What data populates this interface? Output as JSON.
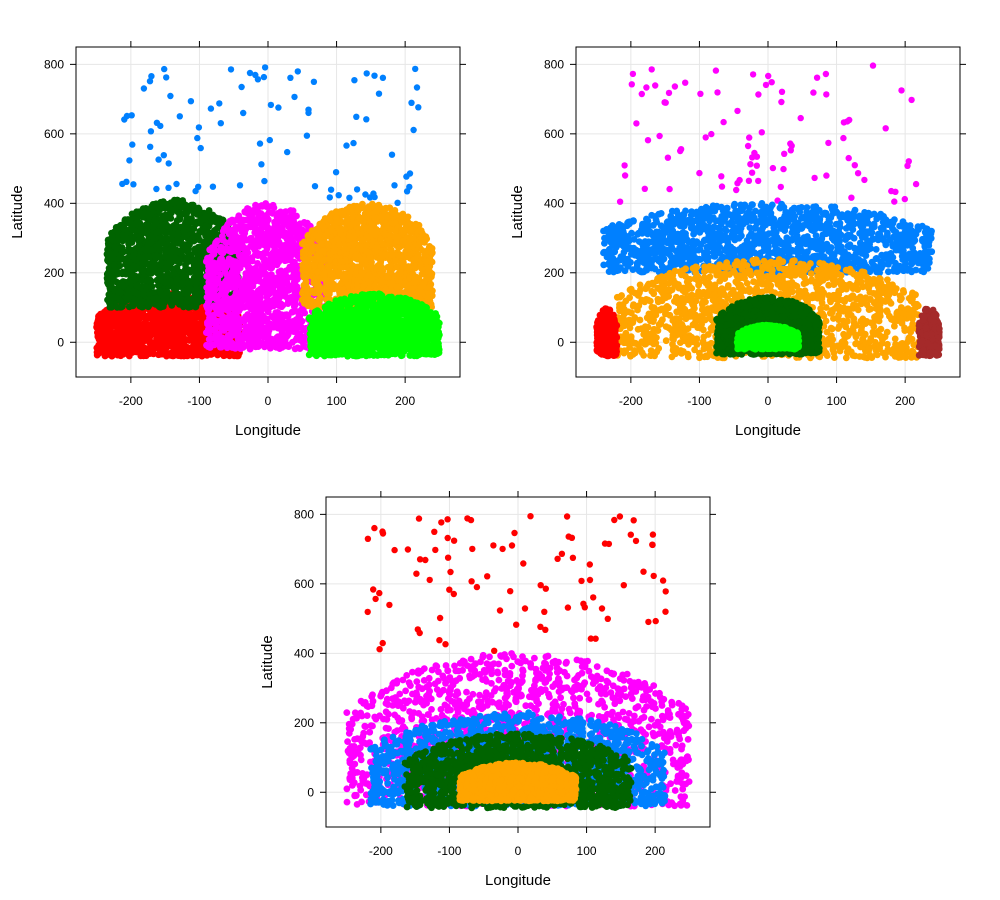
{
  "colors": {
    "red": "#ff0000",
    "green": "#00ff00",
    "darkgreen": "#006400",
    "blue": "#0080ff",
    "magenta": "#ff00ff",
    "orange": "#ffa500",
    "brown": "#a52a2a",
    "grid": "#e6e6e6",
    "frame": "#000000"
  },
  "chart_data": [
    {
      "type": "scatter",
      "title": "",
      "xlabel": "Longitude",
      "ylabel": "Latitude",
      "xlim": [
        -280,
        280
      ],
      "ylim": [
        -100,
        850
      ],
      "x_ticks": [
        -200,
        -100,
        0,
        100,
        200
      ],
      "y_ticks": [
        0,
        200,
        400,
        600,
        800
      ],
      "grid": true,
      "clusters": [
        {
          "color": "red",
          "x_range": [
            -250,
            -40
          ],
          "y_range": [
            -40,
            140
          ],
          "approx_points": 3000
        },
        {
          "color": "darkgreen",
          "x_range": [
            -235,
            -40
          ],
          "y_range": [
            100,
            410
          ],
          "approx_points": 2500
        },
        {
          "color": "magenta",
          "x_range": [
            -90,
            90
          ],
          "y_range": [
            -20,
            400
          ],
          "approx_points": 3000
        },
        {
          "color": "orange",
          "x_range": [
            50,
            240
          ],
          "y_range": [
            100,
            400
          ],
          "approx_points": 2500
        },
        {
          "color": "green",
          "x_range": [
            60,
            250
          ],
          "y_range": [
            -40,
            140
          ],
          "approx_points": 3000
        },
        {
          "color": "blue",
          "x_range": [
            -220,
            220
          ],
          "y_range": [
            400,
            800
          ],
          "approx_points": 90
        }
      ]
    },
    {
      "type": "scatter",
      "title": "",
      "xlabel": "Longitude",
      "ylabel": "Latitude",
      "xlim": [
        -280,
        280
      ],
      "ylim": [
        -100,
        850
      ],
      "x_ticks": [
        -200,
        -100,
        0,
        100,
        200
      ],
      "y_ticks": [
        0,
        200,
        400,
        600,
        800
      ],
      "grid": true,
      "clusters": [
        {
          "color": "magenta",
          "x_range": [
            -220,
            220
          ],
          "y_range": [
            400,
            800
          ],
          "approx_points": 90
        },
        {
          "color": "blue",
          "x_range": [
            -240,
            240
          ],
          "y_range": [
            200,
            400
          ],
          "approx_points": 3500
        },
        {
          "color": "orange",
          "x_range": [
            -220,
            220
          ],
          "y_range": [
            -45,
            240
          ],
          "approx_points": 5000
        },
        {
          "color": "darkgreen",
          "x_range": [
            -75,
            75
          ],
          "y_range": [
            -35,
            130
          ],
          "approx_points": 1500
        },
        {
          "color": "green",
          "x_range": [
            -45,
            45
          ],
          "y_range": [
            -20,
            50
          ],
          "approx_points": 600
        },
        {
          "color": "red",
          "x_range": [
            -250,
            -220
          ],
          "y_range": [
            -40,
            100
          ],
          "approx_points": 300
        },
        {
          "color": "brown",
          "x_range": [
            220,
            250
          ],
          "y_range": [
            -40,
            100
          ],
          "approx_points": 300
        }
      ]
    },
    {
      "type": "scatter",
      "title": "",
      "xlabel": "Longitude",
      "ylabel": "Latitude",
      "xlim": [
        -280,
        280
      ],
      "ylim": [
        -100,
        850
      ],
      "x_ticks": [
        -200,
        -100,
        0,
        100,
        200
      ],
      "y_ticks": [
        0,
        200,
        400,
        600,
        800
      ],
      "grid": true,
      "clusters": [
        {
          "color": "red",
          "x_range": [
            -220,
            220
          ],
          "y_range": [
            400,
            800
          ],
          "approx_points": 90
        },
        {
          "color": "magenta",
          "x_range": [
            -250,
            250
          ],
          "y_range": [
            -40,
            400
          ],
          "approx_points": 4000
        },
        {
          "color": "blue",
          "x_range": [
            -215,
            215
          ],
          "y_range": [
            -40,
            230
          ],
          "approx_points": 3500
        },
        {
          "color": "darkgreen",
          "x_range": [
            -165,
            165
          ],
          "y_range": [
            -45,
            170
          ],
          "approx_points": 3000
        },
        {
          "color": "orange",
          "x_range": [
            -85,
            85
          ],
          "y_range": [
            -25,
            85
          ],
          "approx_points": 1200
        }
      ]
    }
  ]
}
